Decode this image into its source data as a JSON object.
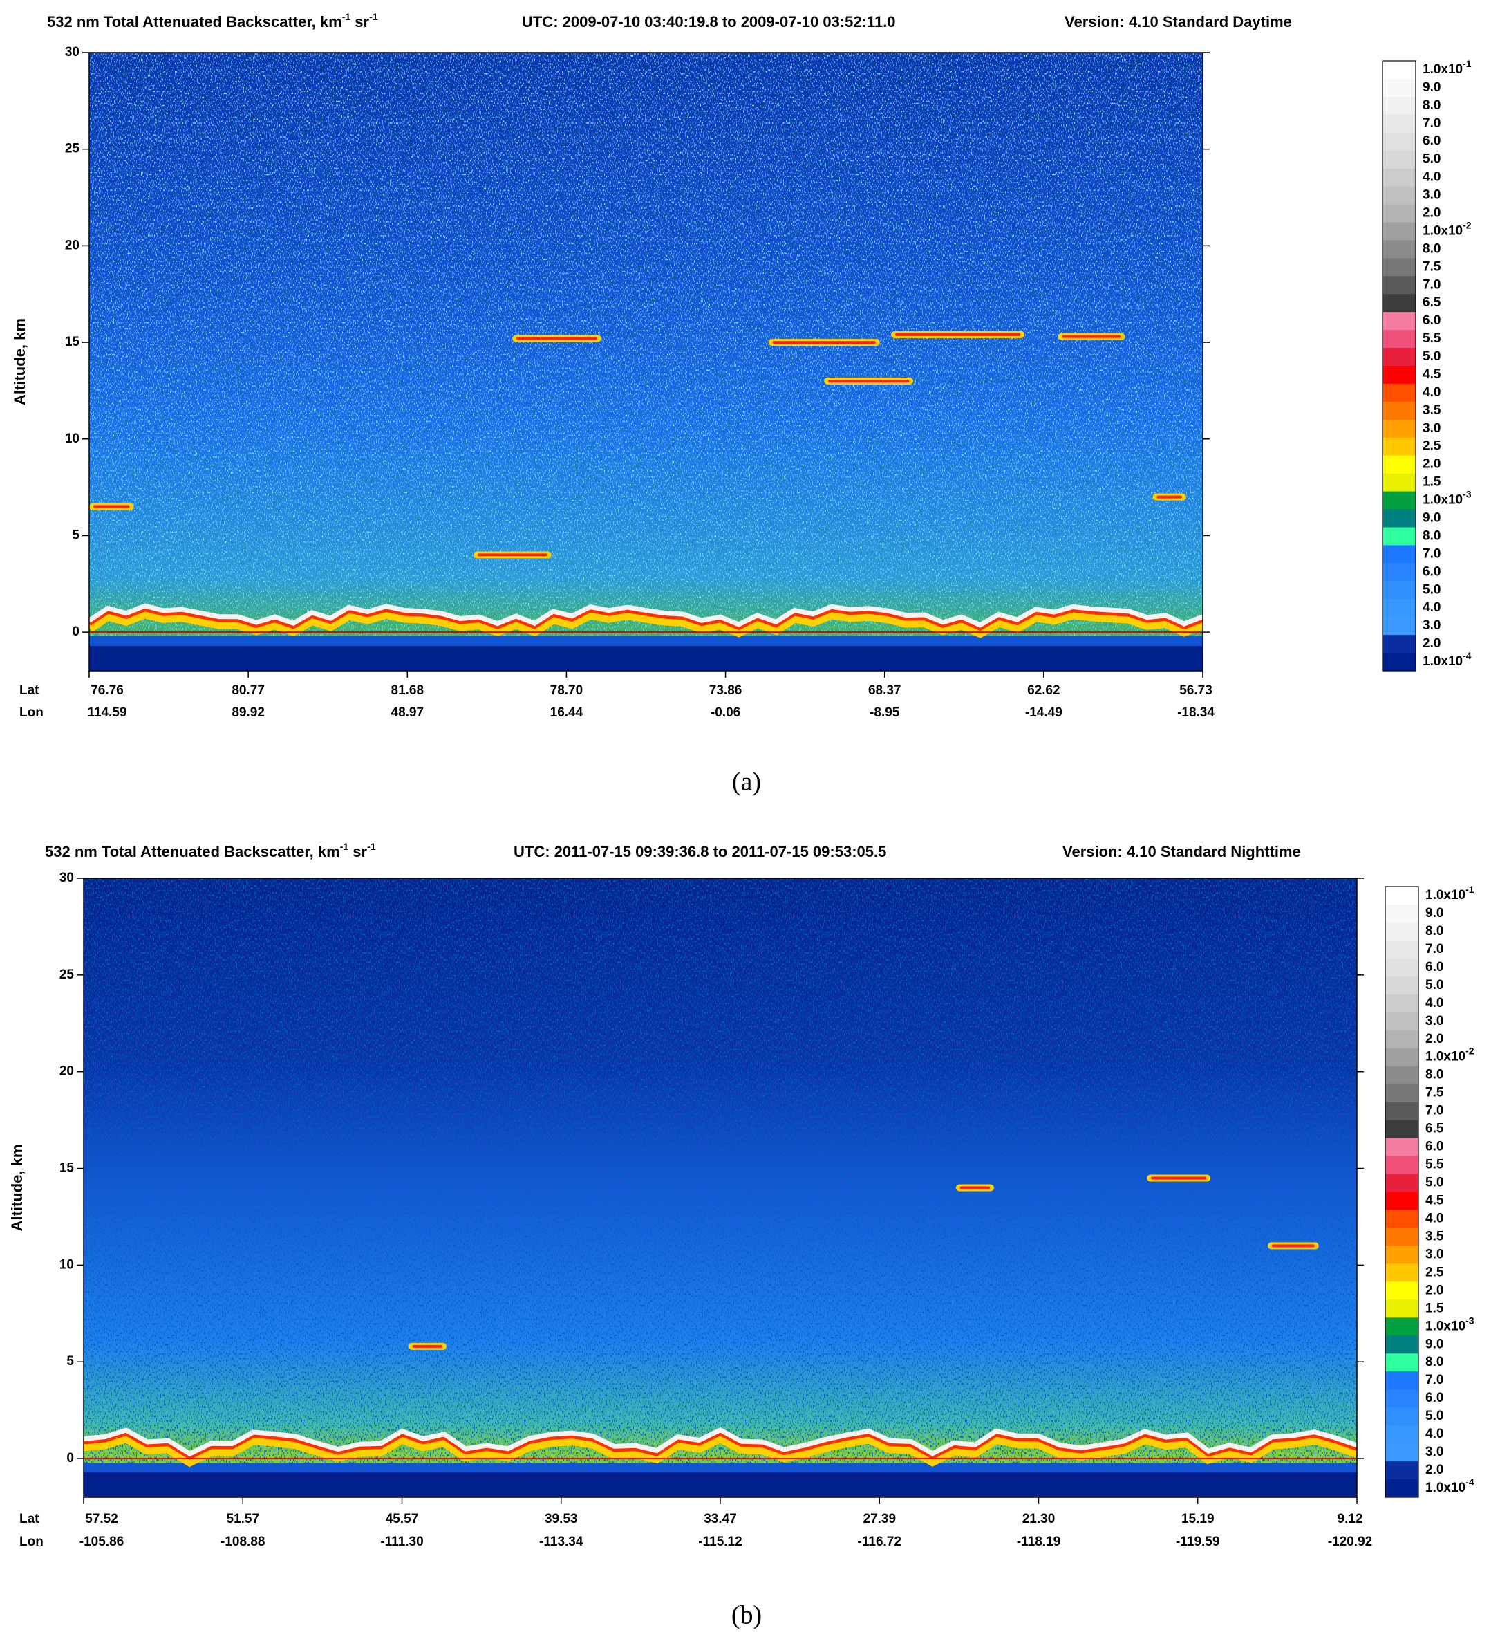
{
  "panels": [
    {
      "title_parts": [
        {
          "text": "532 nm Total Attenuated Backscatter, km"
        },
        {
          "sup": "-1"
        },
        {
          "text": " sr"
        },
        {
          "sup": "-1"
        }
      ],
      "utc": "UTC:  2009-07-10 03:40:19.8  to  2009-07-10 03:52:11.0",
      "version": "Version: 4.10  Standard  Daytime",
      "y_label": "Altitude, km",
      "ylim": [
        -2,
        30
      ],
      "yticks": [
        0,
        5,
        10,
        15,
        20,
        25,
        30
      ],
      "lat_label": "Lat",
      "lon_label": "Lon",
      "lat": [
        "76.76",
        "80.77",
        "81.68",
        "78.70",
        "73.86",
        "68.37",
        "62.62",
        "56.73"
      ],
      "lon": [
        "114.59",
        "89.92",
        "48.97",
        "16.44",
        "-0.06",
        "-8.95",
        "-14.49",
        "-18.34"
      ],
      "caption": "(a)"
    },
    {
      "title_parts": [
        {
          "text": "532 nm Total Attenuated Backscatter, km"
        },
        {
          "sup": "-1"
        },
        {
          "text": " sr"
        },
        {
          "sup": "-1"
        }
      ],
      "utc": "UTC:  2011-07-15 09:39:36.8  to  2011-07-15 09:53:05.5",
      "version": "Version: 4.10  Standard  Nighttime",
      "y_label": "Altitude, km",
      "ylim": [
        -2,
        30
      ],
      "yticks": [
        0,
        5,
        10,
        15,
        20,
        25,
        30
      ],
      "lat_label": "Lat",
      "lon_label": "Lon",
      "lat": [
        "57.52",
        "51.57",
        "45.57",
        "39.53",
        "33.47",
        "27.39",
        "21.30",
        "15.19",
        "9.12"
      ],
      "lon": [
        "-105.86",
        "-108.88",
        "-111.30",
        "-113.34",
        "-115.12",
        "-116.72",
        "-118.19",
        "-119.59",
        "-120.92"
      ],
      "caption": "(b)"
    }
  ],
  "colorbar": {
    "labels": [
      {
        "text": "1.0x10",
        "sup": "-1"
      },
      {
        "text": "9.0"
      },
      {
        "text": "8.0"
      },
      {
        "text": "7.0"
      },
      {
        "text": "6.0"
      },
      {
        "text": "5.0"
      },
      {
        "text": "4.0"
      },
      {
        "text": "3.0"
      },
      {
        "text": "2.0"
      },
      {
        "text": "1.0x10",
        "sup": "-2"
      },
      {
        "text": "8.0"
      },
      {
        "text": "7.5"
      },
      {
        "text": "7.0"
      },
      {
        "text": "6.5"
      },
      {
        "text": "6.0"
      },
      {
        "text": "5.5"
      },
      {
        "text": "5.0"
      },
      {
        "text": "4.5"
      },
      {
        "text": "4.0"
      },
      {
        "text": "3.5"
      },
      {
        "text": "3.0"
      },
      {
        "text": "2.5"
      },
      {
        "text": "2.0"
      },
      {
        "text": "1.5"
      },
      {
        "text": "1.0x10",
        "sup": "-3"
      },
      {
        "text": "9.0"
      },
      {
        "text": "8.0"
      },
      {
        "text": "7.0"
      },
      {
        "text": "6.0"
      },
      {
        "text": "5.0"
      },
      {
        "text": "4.0"
      },
      {
        "text": "3.0"
      },
      {
        "text": "2.0"
      },
      {
        "text": "1.0x10",
        "sup": "-4"
      }
    ],
    "colors": [
      "#ffffff",
      "#f8f8f8",
      "#f0f0f0",
      "#e8e8e8",
      "#e0e0e0",
      "#d8d8d8",
      "#cccccc",
      "#c0c0c0",
      "#b4b4b4",
      "#a0a0a0",
      "#8c8c8c",
      "#787878",
      "#5a5a5a",
      "#3c3c3c",
      "#f57ea0",
      "#f0507a",
      "#e8203c",
      "#ff0000",
      "#ff5000",
      "#ff7800",
      "#ffa000",
      "#ffc800",
      "#ffff00",
      "#e8f000",
      "#00a040",
      "#008080",
      "#30ffa0",
      "#1e78ff",
      "#2a84ff",
      "#3090ff",
      "#3898ff",
      "#3c9aff",
      "#0a2ea0",
      "#002090"
    ]
  }
}
